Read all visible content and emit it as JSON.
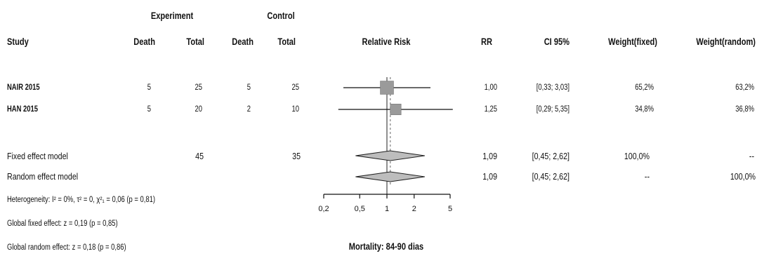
{
  "header": {
    "group_experiment": "Experiment",
    "group_control": "Control",
    "col_study": "Study",
    "col_exp_death": "Death",
    "col_exp_total": "Total",
    "col_ctl_death": "Death",
    "col_ctl_total": "Total",
    "col_plot": "Relative Risk",
    "col_rr": "RR",
    "col_ci": "CI 95%",
    "col_wfixed": "Weight(fixed)",
    "col_wrandom": "Weight(random)"
  },
  "studies": [
    {
      "study": "NAIR 2015",
      "exp_death": "5",
      "exp_total": "25",
      "ctl_death": "5",
      "ctl_total": "25",
      "rr": "1,00",
      "ci": "[0,33; 3,03]",
      "w_fixed": "65,2%",
      "w_random": "63,2%"
    },
    {
      "study": "HAN  2015",
      "exp_death": "5",
      "exp_total": "20",
      "ctl_death": "2",
      "ctl_total": "10",
      "rr": "1,25",
      "ci": "[0,29; 5,35]",
      "w_fixed": "34,8%",
      "w_random": "36,8%"
    }
  ],
  "fixed": {
    "label": "Fixed effect model",
    "exp_total": "45",
    "ctl_total": "35",
    "rr": "1,09",
    "ci": "[0,45; 2,62]",
    "w_fixed": "100,0%",
    "w_random": "--"
  },
  "random": {
    "label": "Random effect model",
    "rr": "1,09",
    "ci": "[0,45; 2,62]",
    "w_fixed": "--",
    "w_random": "100,0%"
  },
  "footer": {
    "heterogeneity": "Heterogeneity: I² = 0%, τ² = 0, χ²₁ = 0,06 (p = 0,81)",
    "fixed_effect": "Global fixed effect: z = 0,19 (p = 0,85)",
    "random_effect": "Global random effect: z = 0,18 (p = 0,86)",
    "xaxis_title": "Mortality: 84-90 dias"
  },
  "chart_data": {
    "type": "forest",
    "scale": "log",
    "xlim": [
      0.2,
      5
    ],
    "ticks": [
      0.2,
      0.5,
      1,
      2,
      5
    ],
    "tick_labels": [
      "0,2",
      "0,5",
      "1",
      "2",
      "5"
    ],
    "reference_line": 1,
    "pooled_dashed_line": 1.09,
    "studies": [
      {
        "name": "NAIR 2015",
        "rr": 1.0,
        "lower": 0.33,
        "upper": 3.03,
        "weight": 65.2
      },
      {
        "name": "HAN  2015",
        "rr": 1.25,
        "lower": 0.29,
        "upper": 5.35,
        "weight": 34.8
      }
    ],
    "pooled": [
      {
        "name": "Fixed effect model",
        "rr": 1.09,
        "lower": 0.45,
        "upper": 2.62
      },
      {
        "name": "Random effect model",
        "rr": 1.09,
        "lower": 0.45,
        "upper": 2.62
      }
    ],
    "xlabel": "Mortality: 84-90 dias"
  }
}
